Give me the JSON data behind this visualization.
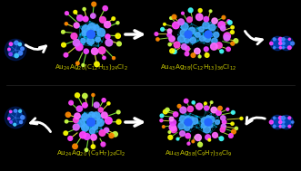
{
  "background_color": "#000000",
  "text_color": "#cccc00",
  "arrow_color": "#ffffff",
  "text_top_left": "Au$_{24}$Ag$_{20}$(C$_{12}$H$_{13}$)$_{24}$Cl$_2$",
  "text_top_right": "Au$_{43}$Ag$_{38}$(C$_{12}$H$_{13}$)$_{36}$Cl$_{12}$",
  "text_bot_left": "Au$_{24}$Ag$_{20}$ (C$_9$H$_7$)$_{24}$Cl$_2$",
  "text_bot_right": "Au$_{43}$Ag$_{38}$(C$_9$H$_7$)$_{36}$Cl$_9$",
  "fig_width": 3.31,
  "fig_height": 1.89,
  "dpi": 100
}
